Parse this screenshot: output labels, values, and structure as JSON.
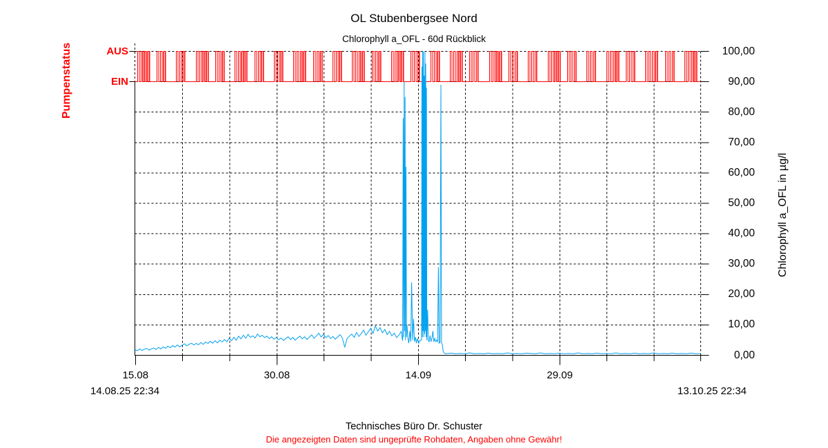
{
  "header": {
    "title": "OL Stubenbergsee Nord",
    "subtitle": "Chlorophyll a_OFL - 60d Rückblick"
  },
  "footer": {
    "company": "Technisches Büro Dr. Schuster",
    "disclaimer": "Die angezeigten Daten sind ungeprüfte Rohdaten, Angaben ohne Gewähr!"
  },
  "colors": {
    "accent_red": "#ff0000",
    "series_blue": "#00a0f0",
    "grid_black": "#000000"
  },
  "chart_data": {
    "type": "line",
    "title": "OL Stubenbergsee Nord",
    "subtitle": "Chlorophyll a_OFL - 60d Rückblick",
    "x_start_label": "14.08.25 22:34",
    "x_end_label": "13.10.25 22:34",
    "x_span_days": 60,
    "grid": true,
    "legend": "none",
    "x_major_ticks": [
      {
        "day": 0.06,
        "label": "15.08"
      },
      {
        "day": 15.06,
        "label": "30.08"
      },
      {
        "day": 30.06,
        "label": "14.09"
      },
      {
        "day": 45.06,
        "label": "29.09"
      }
    ],
    "x_grid_days": [
      5.06,
      10.06,
      15.06,
      20.06,
      25.06,
      30.06,
      35.06,
      40.06,
      45.06,
      50.06,
      55.06
    ],
    "x_minor_tick_days": [
      0.06,
      5.06,
      10.06,
      15.06,
      20.06,
      25.06,
      30.06,
      35.06,
      40.06,
      45.06,
      50.06,
      55.06,
      60
    ],
    "y_axis": {
      "label": "Chlorophyll a_OFL in µg/l",
      "min": 0,
      "max": 100,
      "tick_step": 10,
      "tick_labels": [
        "0,00",
        "10,00",
        "20,00",
        "30,00",
        "40,00",
        "50,00",
        "60,00",
        "70,00",
        "80,00",
        "90,00",
        "100,00"
      ]
    },
    "pump_axis": {
      "label": "Pumpenstatus",
      "high_label": "AUS",
      "low_label": "EIN",
      "high_value": 100,
      "low_value": 90,
      "pulse_days": 0.18,
      "gap_days": 0.18
    },
    "pump_clusters": [
      [
        0.29,
        4
      ],
      [
        2.34,
        3
      ],
      [
        4.39,
        3
      ],
      [
        6.51,
        4
      ],
      [
        8.56,
        3
      ],
      [
        10.61,
        4
      ],
      [
        12.73,
        3
      ],
      [
        14.78,
        3
      ],
      [
        16.83,
        4
      ],
      [
        18.95,
        3
      ],
      [
        21.0,
        3
      ],
      [
        23.05,
        4
      ],
      [
        25.17,
        3
      ],
      [
        27.22,
        4
      ],
      [
        29.27,
        3
      ],
      [
        31.39,
        3
      ],
      [
        33.44,
        4
      ],
      [
        35.49,
        3
      ],
      [
        37.61,
        4
      ],
      [
        39.66,
        3
      ],
      [
        41.71,
        3
      ],
      [
        43.83,
        4
      ],
      [
        45.88,
        3
      ],
      [
        47.93,
        3
      ],
      [
        50.05,
        4
      ],
      [
        52.1,
        3
      ],
      [
        54.15,
        4
      ],
      [
        56.27,
        3
      ],
      [
        58.32,
        4
      ]
    ],
    "series": [
      {
        "name": "Chlorophyll a_OFL",
        "color": "#00a0f0",
        "points": [
          [
            0,
            1.8
          ],
          [
            0.25,
            1.5
          ],
          [
            0.5,
            2.1
          ],
          [
            0.75,
            1.6
          ],
          [
            1,
            2.0
          ],
          [
            1.25,
            2.3
          ],
          [
            1.5,
            1.7
          ],
          [
            1.75,
            2.1
          ],
          [
            2,
            2.4
          ],
          [
            2.25,
            1.9
          ],
          [
            2.5,
            2.6
          ],
          [
            2.75,
            2.1
          ],
          [
            3,
            2.8
          ],
          [
            3.25,
            2.3
          ],
          [
            3.5,
            3.0
          ],
          [
            3.75,
            2.5
          ],
          [
            4,
            3.2
          ],
          [
            4.25,
            2.7
          ],
          [
            4.5,
            3.4
          ],
          [
            4.75,
            2.8
          ],
          [
            5,
            3.3
          ],
          [
            5.25,
            3.8
          ],
          [
            5.5,
            3.1
          ],
          [
            5.75,
            3.6
          ],
          [
            6,
            4.0
          ],
          [
            6.25,
            3.4
          ],
          [
            6.5,
            3.9
          ],
          [
            6.75,
            3.5
          ],
          [
            7,
            4.2
          ],
          [
            7.25,
            3.6
          ],
          [
            7.5,
            4.4
          ],
          [
            7.75,
            3.9
          ],
          [
            8,
            4.6
          ],
          [
            8.25,
            4.0
          ],
          [
            8.5,
            4.8
          ],
          [
            8.75,
            4.1
          ],
          [
            9,
            5.0
          ],
          [
            9.25,
            4.4
          ],
          [
            9.5,
            5.2
          ],
          [
            9.75,
            4.5
          ],
          [
            10,
            5.6
          ],
          [
            10.25,
            4.8
          ],
          [
            10.5,
            5.9
          ],
          [
            10.75,
            5.0
          ],
          [
            11,
            6.3
          ],
          [
            11.25,
            5.4
          ],
          [
            11.5,
            6.6
          ],
          [
            11.75,
            5.6
          ],
          [
            12,
            6.9
          ],
          [
            12.25,
            5.9
          ],
          [
            12.5,
            6.4
          ],
          [
            12.75,
            5.7
          ],
          [
            13,
            7.0
          ],
          [
            13.25,
            6.1
          ],
          [
            13.5,
            6.6
          ],
          [
            13.75,
            5.8
          ],
          [
            14,
            6.3
          ],
          [
            14.25,
            5.5
          ],
          [
            14.5,
            6.1
          ],
          [
            14.75,
            5.3
          ],
          [
            15,
            5.9
          ],
          [
            15.25,
            5.1
          ],
          [
            15.5,
            5.7
          ],
          [
            15.75,
            4.9
          ],
          [
            16,
            5.5
          ],
          [
            16.25,
            6.1
          ],
          [
            16.5,
            5.2
          ],
          [
            16.75,
            5.9
          ],
          [
            17,
            5.0
          ],
          [
            17.25,
            5.7
          ],
          [
            17.5,
            6.3
          ],
          [
            17.75,
            5.4
          ],
          [
            18,
            6.1
          ],
          [
            18.25,
            5.2
          ],
          [
            18.5,
            6.0
          ],
          [
            18.75,
            6.7
          ],
          [
            19,
            5.6
          ],
          [
            19.25,
            6.4
          ],
          [
            19.5,
            7.3
          ],
          [
            19.75,
            6.0
          ],
          [
            20,
            6.9
          ],
          [
            20.25,
            5.8
          ],
          [
            20.5,
            6.5
          ],
          [
            20.75,
            5.5
          ],
          [
            21,
            6.2
          ],
          [
            21.25,
            5.3
          ],
          [
            21.5,
            6.0
          ],
          [
            21.75,
            6.8
          ],
          [
            22,
            5.7
          ],
          [
            22.25,
            2.6
          ],
          [
            22.5,
            5.5
          ],
          [
            22.75,
            6.3
          ],
          [
            23,
            7.0
          ],
          [
            23.25,
            5.9
          ],
          [
            23.5,
            7.5
          ],
          [
            23.75,
            6.2
          ],
          [
            24,
            7.1
          ],
          [
            24.25,
            8.3
          ],
          [
            24.5,
            6.6
          ],
          [
            24.75,
            7.7
          ],
          [
            25,
            8.9
          ],
          [
            25.25,
            7.2
          ],
          [
            25.5,
            9.7
          ],
          [
            25.75,
            8.0
          ],
          [
            26,
            9.1
          ],
          [
            26.25,
            7.4
          ],
          [
            26.5,
            8.5
          ],
          [
            26.75,
            6.8
          ],
          [
            27,
            7.9
          ],
          [
            27.25,
            6.4
          ],
          [
            27.5,
            7.3
          ],
          [
            27.75,
            5.8
          ],
          [
            28,
            6.7
          ],
          [
            28.25,
            7.9
          ],
          [
            28.3,
            6.2
          ],
          [
            28.4,
            4.8
          ],
          [
            28.45,
            78
          ],
          [
            28.5,
            6
          ],
          [
            28.55,
            90
          ],
          [
            28.6,
            8
          ],
          [
            28.65,
            85
          ],
          [
            28.7,
            5
          ],
          [
            28.75,
            62
          ],
          [
            28.8,
            6
          ],
          [
            28.85,
            10
          ],
          [
            28.95,
            5.5
          ],
          [
            29.05,
            4
          ],
          [
            29.15,
            8
          ],
          [
            29.25,
            4.5
          ],
          [
            29.35,
            24
          ],
          [
            29.45,
            5
          ],
          [
            29.55,
            12
          ],
          [
            29.65,
            4.5
          ],
          [
            29.75,
            6
          ],
          [
            29.85,
            4
          ],
          [
            29.95,
            5.5
          ],
          [
            30.1,
            4
          ],
          [
            30.25,
            5
          ],
          [
            30.4,
            5
          ],
          [
            30.44,
            95
          ],
          [
            30.48,
            6
          ],
          [
            30.52,
            100
          ],
          [
            30.56,
            8
          ],
          [
            30.6,
            100
          ],
          [
            30.64,
            6
          ],
          [
            30.68,
            92
          ],
          [
            30.72,
            7
          ],
          [
            30.76,
            100
          ],
          [
            30.8,
            8
          ],
          [
            30.84,
            96
          ],
          [
            30.88,
            6
          ],
          [
            30.92,
            88
          ],
          [
            30.96,
            5
          ],
          [
            31.05,
            15
          ],
          [
            31.1,
            5
          ],
          [
            31.2,
            4.5
          ],
          [
            31.3,
            6.5
          ],
          [
            31.4,
            4.5
          ],
          [
            31.5,
            5.5
          ],
          [
            31.6,
            8
          ],
          [
            31.7,
            4.5
          ],
          [
            31.8,
            5.5
          ],
          [
            31.9,
            4.5
          ],
          [
            32,
            5
          ],
          [
            32.1,
            4.5
          ],
          [
            32.19,
            29
          ],
          [
            32.26,
            4
          ],
          [
            32.36,
            4.2
          ],
          [
            32.45,
            89
          ],
          [
            32.52,
            4
          ],
          [
            32.6,
            3.6
          ],
          [
            32.7,
            1.2
          ],
          [
            32.85,
            0.6
          ],
          [
            33,
            0.5
          ],
          [
            33.5,
            0.7
          ],
          [
            34,
            0.5
          ],
          [
            34.5,
            0.6
          ],
          [
            35,
            0.5
          ],
          [
            35.5,
            0.8
          ],
          [
            36,
            0.5
          ],
          [
            36.5,
            0.6
          ],
          [
            37,
            0.5
          ],
          [
            37.5,
            0.7
          ],
          [
            38,
            0.5
          ],
          [
            38.5,
            0.6
          ],
          [
            39,
            0.5
          ],
          [
            39.5,
            0.8
          ],
          [
            40,
            0.5
          ],
          [
            40.5,
            0.6
          ],
          [
            41,
            0.5
          ],
          [
            41.5,
            0.7
          ],
          [
            42,
            0.6
          ],
          [
            42.5,
            0.5
          ],
          [
            43,
            0.8
          ],
          [
            43.5,
            0.5
          ],
          [
            44,
            0.6
          ],
          [
            44.5,
            0.5
          ],
          [
            45,
            0.7
          ],
          [
            45.5,
            0.5
          ],
          [
            46,
            0.6
          ],
          [
            46.5,
            0.5
          ],
          [
            47,
            0.8
          ],
          [
            47.5,
            0.5
          ],
          [
            48,
            0.6
          ],
          [
            48.5,
            0.5
          ],
          [
            49,
            0.7
          ],
          [
            49.5,
            0.5
          ],
          [
            50,
            0.6
          ],
          [
            50.5,
            0.5
          ],
          [
            51,
            0.8
          ],
          [
            51.5,
            0.5
          ],
          [
            52,
            0.6
          ],
          [
            52.5,
            0.5
          ],
          [
            53,
            0.7
          ],
          [
            53.5,
            0.5
          ],
          [
            54,
            0.6
          ],
          [
            54.5,
            0.5
          ],
          [
            55,
            0.8
          ],
          [
            55.5,
            0.5
          ],
          [
            56,
            0.6
          ],
          [
            56.5,
            0.5
          ],
          [
            57,
            0.7
          ],
          [
            57.5,
            0.5
          ],
          [
            58,
            0.6
          ],
          [
            58.5,
            0.5
          ],
          [
            59,
            0.7
          ],
          [
            59.5,
            0.5
          ],
          [
            60,
            0.6
          ]
        ]
      }
    ]
  }
}
